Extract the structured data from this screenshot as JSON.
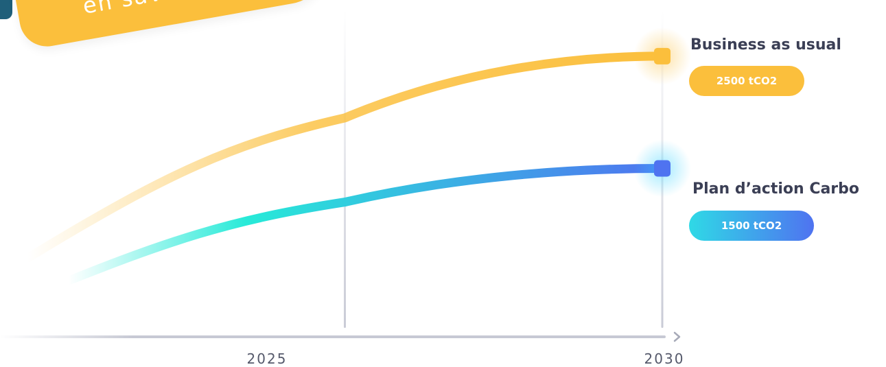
{
  "cta": {
    "label": "en savoir plus"
  },
  "chart_data": {
    "type": "line",
    "x": [
      2020,
      2025,
      2030
    ],
    "xlim": [
      2020,
      2030
    ],
    "ylim": [
      0,
      3000
    ],
    "x_ticks": [
      "2025",
      "2030"
    ],
    "grid": "vertical",
    "series": [
      {
        "name": "Business as usual",
        "value_label": "2500 tCO2",
        "values": [
          700,
          1950,
          2500
        ],
        "color": "#fbbf3c"
      },
      {
        "name": "Plan d’action Carbo",
        "value_label": "1500 tCO2",
        "values": [
          350,
          1200,
          1500
        ],
        "color_start": "#27ead8",
        "color_end": "#4f73f0"
      }
    ],
    "title": "",
    "xlabel": "",
    "ylabel": ""
  }
}
